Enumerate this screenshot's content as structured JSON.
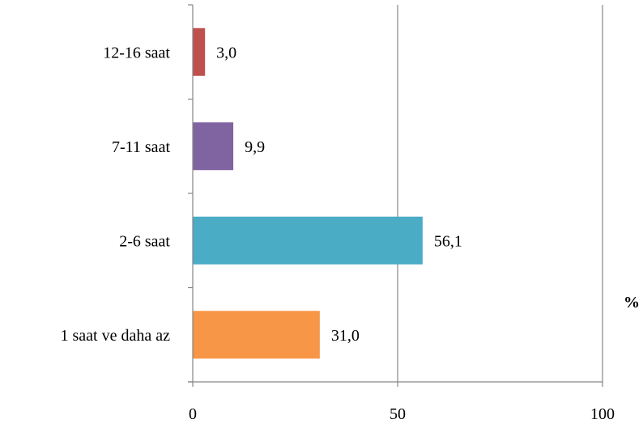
{
  "chart_data": {
    "type": "bar",
    "orientation": "horizontal",
    "categories": [
      "1 saat ve daha az",
      "2-6 saat",
      "7-11 saat",
      "12-16 saat"
    ],
    "values": [
      31.0,
      56.1,
      9.9,
      3.0
    ],
    "data_labels": [
      "31,0",
      "56,1",
      "9,9",
      "3,0"
    ],
    "colors": [
      "#F79646",
      "#4BACC6",
      "#8064A2",
      "#C0504D"
    ],
    "xlim": [
      0,
      100
    ],
    "x_ticks": [
      0,
      50,
      100
    ],
    "x_tick_labels": [
      "0",
      "50",
      "100"
    ],
    "unit_label": "%",
    "grid": "vertical major gridlines",
    "gridline_color": "#868686",
    "legend": "none"
  }
}
